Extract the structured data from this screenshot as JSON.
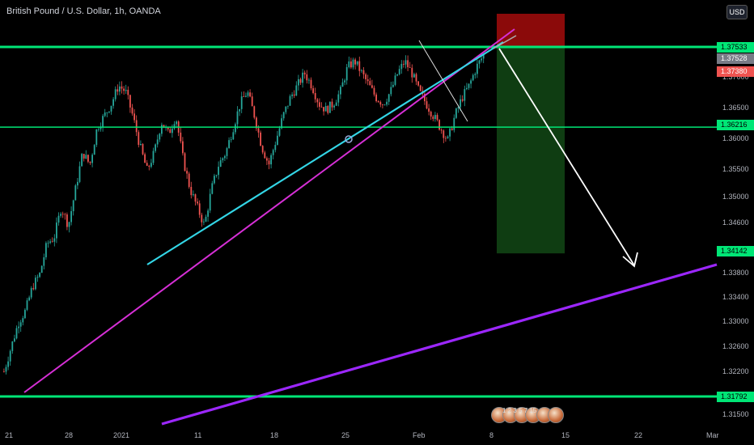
{
  "title": "British Pound / U.S. Dollar, 1h, OANDA",
  "currency": "USD",
  "price_axis": {
    "labels": [
      "1.37000",
      "1.36500",
      "1.36000",
      "1.35500",
      "1.35000",
      "1.34600",
      "1.33800",
      "1.33400",
      "1.33000",
      "1.32600",
      "1.32200",
      "1.31500"
    ],
    "tags": [
      {
        "text": "1.37533",
        "bg": "#00e676",
        "fg": "#000000"
      },
      {
        "text": "1.37528",
        "bg": "#787b86",
        "fg": "#ffffff"
      },
      {
        "text": "1.37380",
        "bg": "#ef5350",
        "fg": "#ffffff"
      },
      {
        "text": "1.36216",
        "bg": "#00e676",
        "fg": "#000000"
      },
      {
        "text": "1.34142",
        "bg": "#00e676",
        "fg": "#000000"
      },
      {
        "text": "1.31792",
        "bg": "#00e676",
        "fg": "#000000"
      }
    ]
  },
  "time_axis": [
    "21",
    "28",
    "2021",
    "11",
    "18",
    "25",
    "Feb",
    "8",
    "15",
    "22",
    "Mar"
  ],
  "events_text": "1 2 3 5 7 15",
  "colors": {
    "support": "#00e676",
    "up_candle": "#26a69a",
    "down_candle": "#ef5350",
    "cyan_trend": "#33d6e6",
    "magenta_trend": "#d62fd6",
    "purple_trend": "#9c27ff",
    "arrow": "#ffffff",
    "stop_zone": "#8b0a0a",
    "target_zone": "#0f3d12"
  },
  "chart_data": {
    "type": "candlestick",
    "symbol": "GBPUSD",
    "interval": "1h",
    "source": "OANDA",
    "price_range": [
      1.314,
      1.3755
    ],
    "horizontal_levels": [
      1.37533,
      1.36216,
      1.31792
    ],
    "short_position": {
      "entry": 1.37533,
      "stop": 1.3768,
      "target": 1.34142
    },
    "close_path": [
      1.322,
      1.326,
      1.33,
      1.332,
      1.336,
      1.338,
      1.343,
      1.344,
      1.349,
      1.346,
      1.352,
      1.358,
      1.356,
      1.362,
      1.364,
      1.366,
      1.369,
      1.368,
      1.364,
      1.359,
      1.355,
      1.358,
      1.363,
      1.361,
      1.364,
      1.357,
      1.352,
      1.349,
      1.346,
      1.352,
      1.356,
      1.358,
      1.362,
      1.366,
      1.368,
      1.364,
      1.359,
      1.356,
      1.36,
      1.364,
      1.367,
      1.369,
      1.371,
      1.369,
      1.366,
      1.365,
      1.366,
      1.368,
      1.372,
      1.373,
      1.371,
      1.369,
      1.367,
      1.366,
      1.368,
      1.371,
      1.373,
      1.371,
      1.368,
      1.366,
      1.364,
      1.362,
      1.36,
      1.364,
      1.367,
      1.369,
      1.372,
      1.374
    ]
  }
}
